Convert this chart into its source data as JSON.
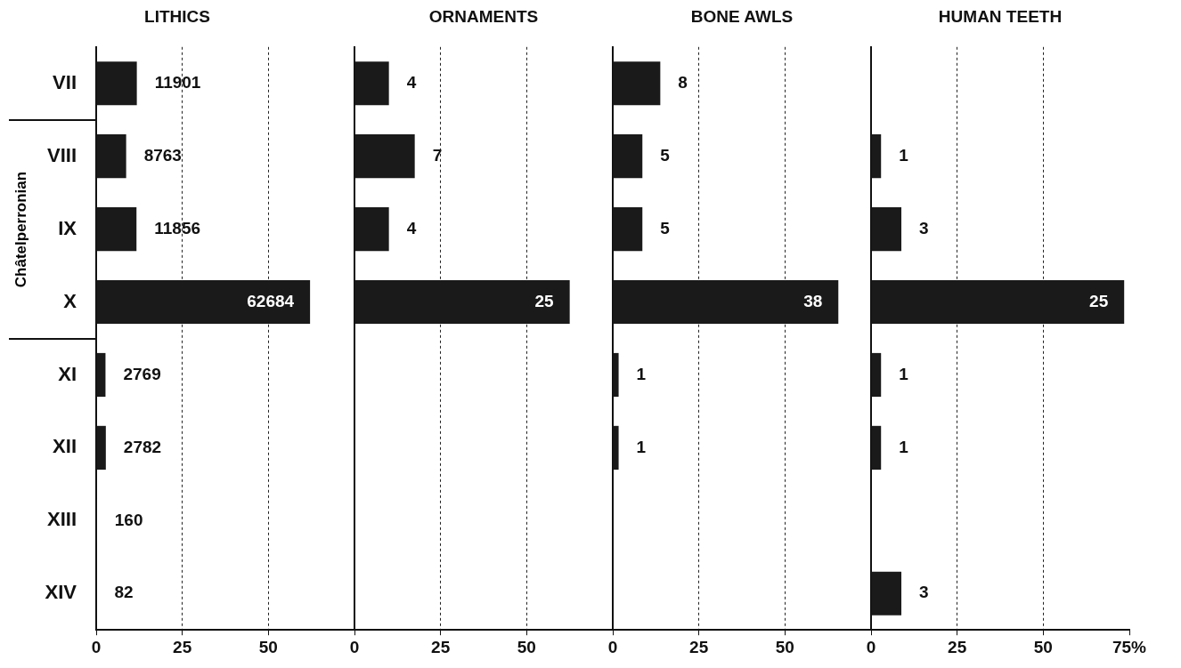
{
  "chart_data": [
    {
      "type": "bar",
      "orientation": "horizontal",
      "title": "LITHICS",
      "categories": [
        "VII",
        "VIII",
        "IX",
        "X",
        "XI",
        "XII",
        "XIII",
        "XIV"
      ],
      "values": [
        11.8,
        8.7,
        11.7,
        62.1,
        2.7,
        2.8,
        0.2,
        0.1
      ],
      "color": "#1a1a1a",
      "xlim": [
        0,
        75
      ],
      "xticks": [
        0,
        25,
        50
      ],
      "grid": "x",
      "annotations": [
        "Châtelperronian",
        {
          "text": "11901",
          "x": 11.8,
          "y": "VII"
        },
        {
          "text": "8763",
          "x": 8.7,
          "y": "VIII"
        },
        {
          "text": "11856",
          "x": 11.7,
          "y": "IX"
        },
        {
          "text": "62684",
          "x": 62.1,
          "y": "X"
        },
        {
          "text": "2769",
          "x": 2.7,
          "y": "XI"
        },
        {
          "text": "2782",
          "x": 2.8,
          "y": "XII"
        },
        {
          "text": "160",
          "x": 0.2,
          "y": "XIII"
        },
        {
          "text": "82",
          "x": 0.1,
          "y": "XIV"
        }
      ]
    },
    {
      "type": "bar",
      "orientation": "horizontal",
      "title": "ORNAMENTS",
      "categories": [
        "VII",
        "VIII",
        "IX",
        "X",
        "XI",
        "XII",
        "XIII",
        "XIV"
      ],
      "values": [
        10,
        17.5,
        10,
        62.5,
        null,
        null,
        null,
        null
      ],
      "color": "#1a1a1a",
      "xlim": [
        0,
        75
      ],
      "xticks": [
        0,
        25,
        50
      ],
      "grid": "x",
      "tick_labels": "x",
      "annotations": [
        {
          "text": "4",
          "x": 10,
          "y": "VII"
        },
        {
          "text": "7",
          "x": 17.5,
          "y": "VIII"
        },
        {
          "text": "4",
          "x": 10,
          "y": "IX"
        },
        {
          "text": "25",
          "x": 62.5,
          "y": "X"
        }
      ]
    },
    {
      "type": "bar",
      "orientation": "horizontal",
      "title": "BONE AWLS",
      "categories": [
        "VII",
        "VIII",
        "IX",
        "X",
        "XI",
        "XII",
        "XIII",
        "XIV"
      ],
      "values": [
        13.8,
        8.6,
        8.6,
        65.5,
        1.7,
        1.7,
        null,
        null
      ],
      "color": "#1a1a1a",
      "xlim": [
        0,
        75
      ],
      "xticks": [
        0,
        25,
        50
      ],
      "grid": "x",
      "tick_labels": "x",
      "annotations": [
        {
          "text": "8",
          "x": 13.8,
          "y": "VII"
        },
        {
          "text": "5",
          "x": 8.6,
          "y": "VIII"
        },
        {
          "text": "5",
          "x": 8.6,
          "y": "IX"
        },
        {
          "text": "38",
          "x": 65.5,
          "y": "X"
        },
        {
          "text": "1",
          "x": 1.7,
          "y": "XI"
        },
        {
          "text": "1",
          "x": 1.7,
          "y": "XII"
        }
      ]
    },
    {
      "type": "bar",
      "orientation": "horizontal",
      "title": "HUMAN TEETH",
      "categories": [
        "VII",
        "VIII",
        "IX",
        "X",
        "XI",
        "XII",
        "XIII",
        "XIV"
      ],
      "values": [
        null,
        2.9,
        8.8,
        73.5,
        2.9,
        2.9,
        null,
        8.8
      ],
      "color": "#1a1a1a",
      "xlim": [
        0,
        75
      ],
      "xticks": [
        0,
        25,
        50,
        {
          "value": 75,
          "label": "75%"
        }
      ],
      "grid": "x",
      "tick_labels": "x",
      "annotations": [
        {
          "text": "1",
          "x": 2.9,
          "y": "VIII"
        },
        {
          "text": "3",
          "x": 8.8,
          "y": "IX"
        },
        {
          "text": "25",
          "x": 73.5,
          "y": "X"
        },
        {
          "text": "1",
          "x": 2.9,
          "y": "XI"
        },
        {
          "text": "1",
          "x": 2.9,
          "y": "XII"
        },
        {
          "text": "3",
          "x": 8.8,
          "y": "XIV"
        }
      ]
    }
  ]
}
